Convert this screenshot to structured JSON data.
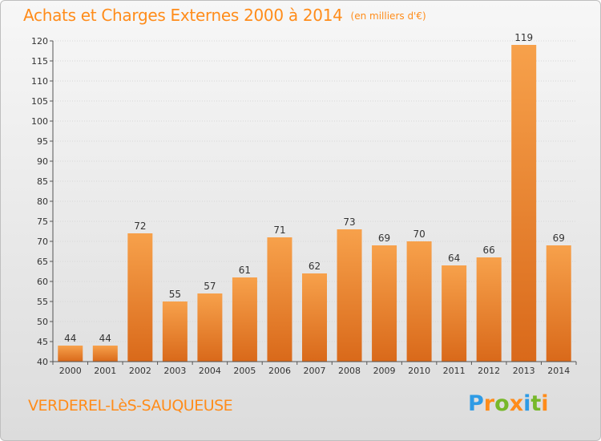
{
  "title": "Achats et Charges Externes 2000 à 2014",
  "unit_note": "(en milliers d'€)",
  "commune": "VERDEREL-LèS-SAUQUEUSE",
  "logo": {
    "letters": [
      "P",
      "r",
      "o",
      "x",
      "i",
      "t",
      "i"
    ],
    "colors": [
      "#2e9be5",
      "#ff8c1a",
      "#77b82a",
      "#ff8c1a",
      "#2e9be5",
      "#77b82a",
      "#ff8c1a"
    ]
  },
  "colors": {
    "bar_top": "#f7a14b",
    "bar_bottom": "#d9691a",
    "accent": "#ff8c1a"
  },
  "chart_data": {
    "type": "bar",
    "title": "Achats et Charges Externes 2000 à 2014",
    "subtitle": "(en milliers d'€)",
    "categories": [
      "2000",
      "2001",
      "2002",
      "2003",
      "2004",
      "2005",
      "2006",
      "2007",
      "2008",
      "2009",
      "2010",
      "2011",
      "2012",
      "2013",
      "2014"
    ],
    "values": [
      44,
      44,
      72,
      55,
      57,
      61,
      71,
      62,
      73,
      69,
      70,
      64,
      66,
      119,
      69
    ],
    "ylim": [
      40,
      120
    ],
    "yticks": [
      40,
      45,
      50,
      55,
      60,
      65,
      70,
      75,
      80,
      85,
      90,
      95,
      100,
      105,
      110,
      115,
      120
    ],
    "grid": true,
    "xlabel": "",
    "ylabel": ""
  }
}
